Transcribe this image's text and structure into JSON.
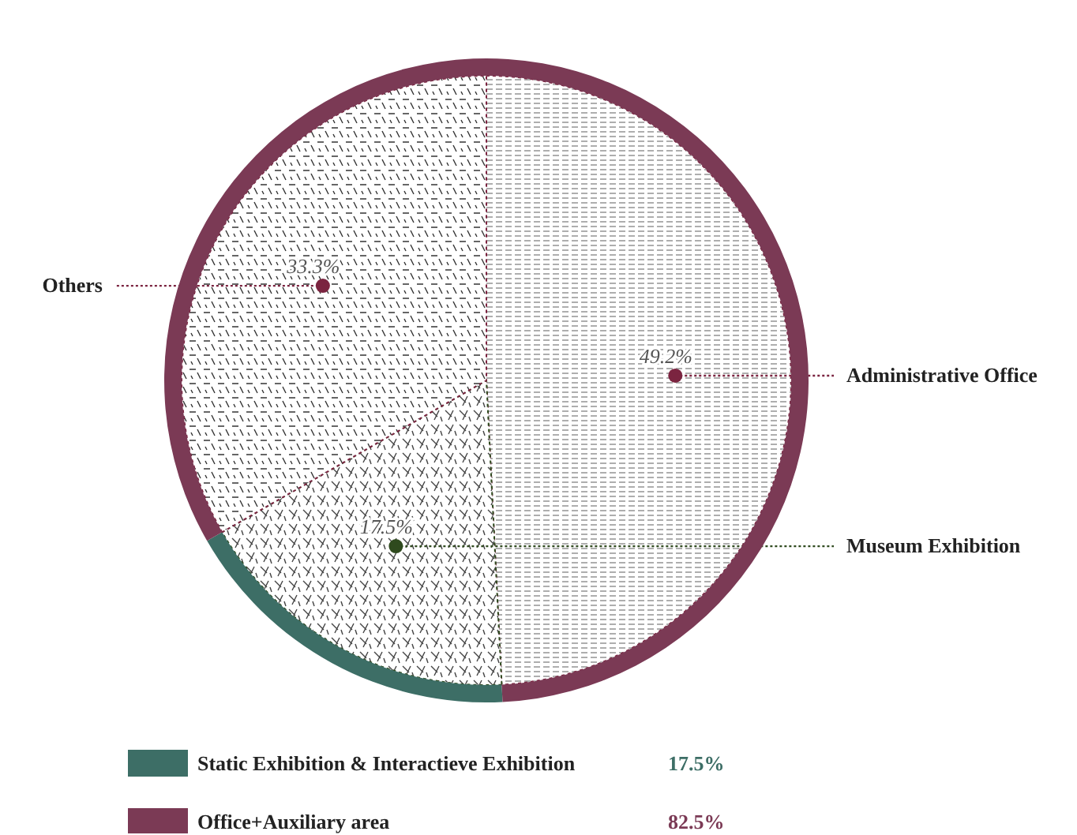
{
  "chart_data": [
    {
      "type": "pie",
      "categories": [
        "Administrative Office",
        "Museum Exhibition",
        "Others"
      ],
      "values": [
        49.2,
        17.5,
        33.3
      ],
      "colors": [
        "#7b2440",
        "#2f4a1e",
        "#7b2440"
      ],
      "value_labels": [
        "49.2%",
        "17.5%",
        "33.3%"
      ]
    },
    {
      "type": "donut",
      "categories": [
        "Static Exhibition & Interactieve Exhibition",
        "Office+Auxiliary area"
      ],
      "values": [
        17.5,
        82.5
      ],
      "colors": [
        "#3d6e66",
        "#7b3a55"
      ],
      "legend": "bottom",
      "value_labels": [
        "17.5%",
        "82.5%"
      ]
    }
  ]
}
